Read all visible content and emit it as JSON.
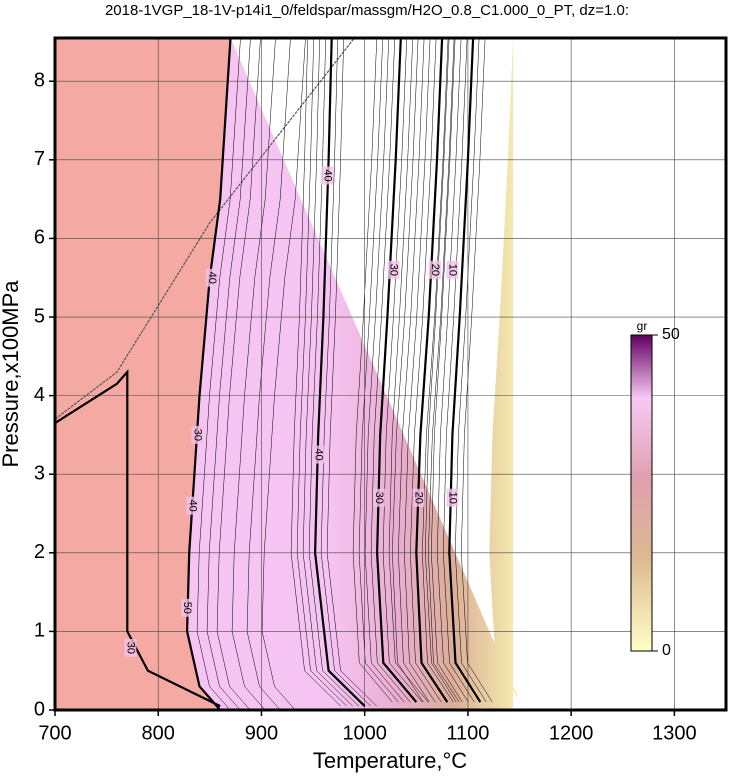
{
  "chart_data": {
    "type": "contour",
    "title": "2018-1VGP_18-1V-p14i1_0/feldspar/massgm/H2O_0.8_C1.000_0_PT, dz=1.0:",
    "x_label": "Temperature,°C",
    "y_label": "Pressure,x100MPa",
    "xlim": [
      700,
      1350
    ],
    "ylim": [
      0,
      8.55
    ],
    "xticks": [
      700,
      800,
      900,
      1000,
      1100,
      1200,
      1300
    ],
    "yticks": [
      0,
      1,
      2,
      3,
      4,
      5,
      6,
      7,
      8
    ],
    "grid": true,
    "colorbar": {
      "label": "gr",
      "lim": [
        0,
        50
      ],
      "ticks": [
        0,
        50
      ]
    },
    "contours": [
      {
        "level": 40,
        "x": [
          870,
          860,
          850,
          840,
          835,
          830,
          828,
          840,
          860
        ],
        "y": [
          8.55,
          6.5,
          5.5,
          4,
          3,
          2,
          1,
          0.3,
          0
        ]
      },
      {
        "level": 30,
        "x": [
          700,
          760,
          770,
          770,
          790,
          860
        ],
        "y": [
          3.65,
          4.15,
          4.3,
          1,
          0.5,
          0.05
        ]
      },
      {
        "level": 40,
        "x": [
          1000,
          965,
          952,
          955,
          960,
          965,
          968
        ],
        "y": [
          0.05,
          0.5,
          2,
          3.5,
          5,
          7,
          8.55
        ]
      },
      {
        "level": 30,
        "x": [
          1050,
          1018,
          1012,
          1015,
          1022,
          1030,
          1035
        ],
        "y": [
          0.1,
          0.6,
          2,
          3.5,
          5,
          7,
          8.55
        ]
      },
      {
        "level": 20,
        "x": [
          1080,
          1055,
          1050,
          1054,
          1062,
          1070,
          1075
        ],
        "y": [
          0.1,
          0.6,
          2,
          3.5,
          5,
          7,
          8.55
        ]
      },
      {
        "level": 10,
        "x": [
          1112,
          1088,
          1082,
          1085,
          1092,
          1100,
          1105
        ],
        "y": [
          0.1,
          0.6,
          2,
          3.5,
          5,
          7,
          8.55
        ]
      }
    ],
    "labels": [
      {
        "value": 40,
        "x": 964,
        "y": 6.8
      },
      {
        "value": 40,
        "x": 955,
        "y": 3.25
      },
      {
        "value": 30,
        "x": 1028,
        "y": 5.6
      },
      {
        "value": 30,
        "x": 1014,
        "y": 2.7
      },
      {
        "value": 20,
        "x": 1068,
        "y": 5.6
      },
      {
        "value": 20,
        "x": 1052,
        "y": 2.7
      },
      {
        "value": 10,
        "x": 1085,
        "y": 5.6
      },
      {
        "value": 10,
        "x": 1085,
        "y": 2.7
      },
      {
        "value": 40,
        "x": 852,
        "y": 5.5
      },
      {
        "value": 30,
        "x": 838,
        "y": 3.5
      },
      {
        "value": 40,
        "x": 833,
        "y": 2.6
      },
      {
        "value": 50,
        "x": 828,
        "y": 1.3
      },
      {
        "value": 30,
        "x": 773,
        "y": 0.79
      }
    ]
  }
}
